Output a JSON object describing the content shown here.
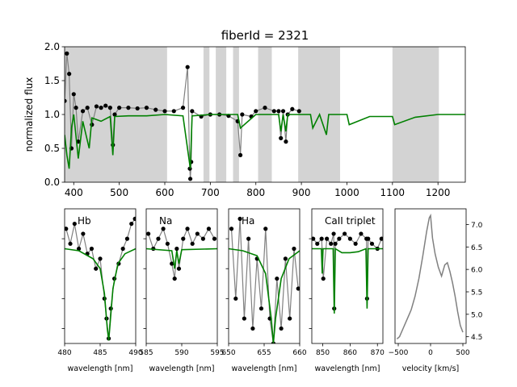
{
  "chart_data": [
    {
      "type": "line",
      "title": "fiberId = 2321",
      "xlabel": "",
      "ylabel": "normalized flux",
      "xlim": [
        380,
        1260
      ],
      "ylim": [
        0,
        2.0
      ],
      "xticks": [
        400,
        500,
        600,
        700,
        800,
        900,
        1000,
        1100,
        1200
      ],
      "yticks": [
        0.0,
        0.5,
        1.0,
        1.5,
        2.0
      ],
      "shaded_regions": [
        [
          380,
          605
        ],
        [
          685,
          698
        ],
        [
          712,
          735
        ],
        [
          750,
          763
        ],
        [
          805,
          835
        ],
        [
          893,
          985
        ],
        [
          1100,
          1202
        ]
      ],
      "series": [
        {
          "kind": "observed",
          "color": "#000000",
          "x": [
            380,
            385,
            390,
            395,
            400,
            405,
            410,
            420,
            430,
            440,
            450,
            460,
            470,
            480,
            486,
            490,
            500,
            520,
            540,
            560,
            580,
            600,
            620,
            640,
            650,
            655,
            656,
            658,
            660,
            680,
            700,
            720,
            740,
            760,
            766,
            770,
            790,
            800,
            820,
            840,
            850,
            855,
            860,
            866,
            870,
            880,
            895
          ],
          "y": [
            1.2,
            1.9,
            1.6,
            0.5,
            1.3,
            1.1,
            0.6,
            1.05,
            1.1,
            0.85,
            1.12,
            1.1,
            1.13,
            1.1,
            0.55,
            1.0,
            1.1,
            1.1,
            1.09,
            1.1,
            1.07,
            1.05,
            1.05,
            1.1,
            1.7,
            0.2,
            0.05,
            0.3,
            1.05,
            0.97,
            1.0,
            1.0,
            0.98,
            0.9,
            0.4,
            1.0,
            0.97,
            1.05,
            1.1,
            1.05,
            1.05,
            0.65,
            1.05,
            0.6,
            1.0,
            1.08,
            1.05
          ]
        },
        {
          "kind": "model",
          "color": "#008000",
          "x": [
            380,
            385,
            390,
            395,
            400,
            410,
            420,
            434,
            440,
            460,
            480,
            486,
            490,
            520,
            560,
            600,
            640,
            656,
            660,
            700,
            760,
            766,
            800,
            850,
            855,
            860,
            866,
            870,
            900,
            920,
            925,
            940,
            955,
            960,
            1000,
            1005,
            1050,
            1100,
            1105,
            1150,
            1200,
            1260
          ],
          "y": [
            0.7,
            0.4,
            0.2,
            0.8,
            1.0,
            0.35,
            0.9,
            0.5,
            0.95,
            0.9,
            0.97,
            0.4,
            0.97,
            0.98,
            0.98,
            1.0,
            0.98,
            0.2,
            0.98,
            1.0,
            1.0,
            0.8,
            1.0,
            1.0,
            0.75,
            1.0,
            0.75,
            1.0,
            1.0,
            1.0,
            0.8,
            1.0,
            0.7,
            1.0,
            1.0,
            0.85,
            0.97,
            0.97,
            0.85,
            0.96,
            1.0,
            1.0
          ]
        }
      ]
    },
    {
      "type": "line",
      "title": "Hb",
      "xlabel": "wavelength [nm]",
      "xlim": [
        480,
        490
      ],
      "ylim": [
        0.05,
        1.4
      ],
      "xticks": [
        480,
        485,
        490
      ],
      "series": [
        {
          "kind": "observed",
          "color": "#000000",
          "x": [
            480.2,
            480.8,
            481.4,
            482.0,
            482.6,
            483.2,
            483.8,
            484.4,
            485.0,
            485.6,
            485.9,
            486.2,
            486.5,
            487.0,
            487.6,
            488.2,
            488.8,
            489.4,
            489.9
          ],
          "y": [
            1.2,
            1.05,
            1.25,
            1.0,
            1.15,
            0.95,
            1.0,
            0.8,
            0.9,
            0.5,
            0.3,
            0.1,
            0.4,
            0.7,
            0.85,
            1.0,
            1.1,
            1.25,
            1.3
          ]
        },
        {
          "kind": "model",
          "color": "#008000",
          "x": [
            480.0,
            482.0,
            484.0,
            485.0,
            485.6,
            486.0,
            486.2,
            486.4,
            486.8,
            487.5,
            488.5,
            490.0
          ],
          "y": [
            1.0,
            0.98,
            0.9,
            0.8,
            0.55,
            0.2,
            0.08,
            0.25,
            0.6,
            0.85,
            0.95,
            1.0
          ]
        }
      ]
    },
    {
      "type": "line",
      "title": "Na",
      "xlabel": "wavelength [nm]",
      "xlim": [
        585,
        595
      ],
      "ylim": [
        0.05,
        1.4
      ],
      "xticks": [
        585,
        590,
        595
      ],
      "series": [
        {
          "kind": "observed",
          "color": "#000000",
          "x": [
            585.3,
            586.0,
            586.7,
            587.4,
            588.0,
            588.6,
            589.0,
            589.3,
            589.6,
            590.2,
            590.8,
            591.5,
            592.2,
            593.0,
            593.8,
            594.6
          ],
          "y": [
            1.15,
            1.0,
            1.1,
            1.2,
            1.05,
            0.85,
            0.7,
            1.0,
            0.8,
            1.1,
            1.2,
            1.05,
            1.15,
            1.1,
            1.2,
            1.1
          ]
        },
        {
          "kind": "model",
          "color": "#008000",
          "x": [
            585.0,
            588.6,
            589.0,
            589.3,
            589.6,
            590.0,
            595.0
          ],
          "y": [
            1.0,
            0.98,
            0.8,
            0.98,
            0.85,
            0.99,
            1.0
          ]
        }
      ]
    },
    {
      "type": "line",
      "title": "Ha",
      "xlabel": "wavelength [nm]",
      "xlim": [
        650,
        660
      ],
      "ylim": [
        0.05,
        1.4
      ],
      "xticks": [
        650,
        655,
        660
      ],
      "series": [
        {
          "kind": "observed",
          "color": "#000000",
          "x": [
            650.4,
            651.0,
            651.6,
            652.2,
            652.8,
            653.4,
            654.0,
            654.6,
            655.2,
            655.8,
            656.3,
            656.8,
            657.4,
            658.0,
            658.6,
            659.2,
            659.8
          ],
          "y": [
            1.2,
            0.5,
            1.3,
            0.3,
            1.1,
            0.2,
            0.9,
            0.4,
            1.2,
            0.3,
            0.05,
            0.7,
            0.2,
            0.9,
            0.3,
            1.0,
            0.6
          ]
        },
        {
          "kind": "model",
          "color": "#008000",
          "x": [
            650.0,
            652.0,
            654.0,
            655.2,
            656.0,
            656.3,
            656.6,
            657.4,
            658.5,
            660.0
          ],
          "y": [
            1.0,
            0.98,
            0.93,
            0.75,
            0.3,
            0.05,
            0.3,
            0.7,
            0.9,
            0.98
          ]
        }
      ]
    },
    {
      "type": "line",
      "title": "CaII triplet",
      "xlabel": "wavelength [nm]",
      "xlim": [
        846,
        872
      ],
      "ylim": [
        0.05,
        1.4
      ],
      "xticks": [
        850,
        860,
        870
      ],
      "series": [
        {
          "kind": "observed",
          "color": "#000000",
          "x": [
            846.5,
            848.0,
            849.6,
            850.2,
            851.5,
            853.0,
            854.0,
            854.2,
            854.6,
            856.0,
            858.0,
            860.0,
            862.0,
            864.0,
            866.0,
            866.2,
            866.6,
            868.0,
            870.0,
            871.5
          ],
          "y": [
            1.1,
            1.05,
            1.1,
            0.7,
            1.1,
            1.05,
            1.15,
            0.4,
            1.05,
            1.1,
            1.15,
            1.1,
            1.05,
            1.15,
            1.1,
            0.5,
            1.1,
            1.05,
            1.0,
            1.1
          ]
        },
        {
          "kind": "model",
          "color": "#008000",
          "x": [
            846.0,
            849.5,
            849.8,
            850.1,
            853.8,
            854.2,
            854.6,
            857.0,
            860.0,
            863.0,
            865.8,
            866.2,
            866.6,
            872.0
          ],
          "y": [
            1.0,
            1.0,
            0.75,
            1.0,
            1.0,
            0.35,
            1.0,
            0.96,
            0.96,
            0.97,
            1.0,
            0.4,
            1.0,
            1.0
          ]
        }
      ]
    },
    {
      "type": "line",
      "xlabel": "velocity [km/s]",
      "xlim": [
        -550,
        550
      ],
      "ylim": [
        4.35,
        7.35
      ],
      "xticks": [
        -500,
        0,
        500
      ],
      "xticklabels": [
        "−500",
        "0",
        "500"
      ],
      "yticks": [
        4.5,
        5.0,
        5.5,
        6.0,
        6.5,
        7.0
      ],
      "yaxis_side": "right",
      "series": [
        {
          "kind": "profile",
          "color": "#808080",
          "x": [
            -520,
            -480,
            -420,
            -360,
            -300,
            -240,
            -180,
            -120,
            -60,
            -20,
            0,
            30,
            70,
            120,
            170,
            220,
            260,
            300,
            340,
            380,
            420,
            460,
            500
          ],
          "y": [
            4.45,
            4.5,
            4.7,
            4.9,
            5.1,
            5.4,
            5.8,
            6.3,
            6.85,
            7.15,
            7.2,
            6.7,
            6.35,
            6.05,
            5.85,
            6.1,
            6.15,
            5.95,
            5.7,
            5.4,
            5.05,
            4.75,
            4.6
          ]
        }
      ]
    }
  ]
}
